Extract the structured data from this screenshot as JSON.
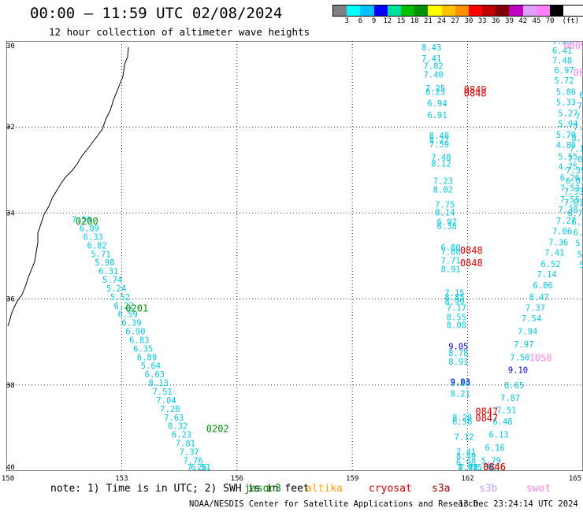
{
  "header": {
    "title": "00:00 – 11:59 UTC 02/08/2024",
    "subtitle": "12 hour collection of altimeter wave heights"
  },
  "legend": {
    "unit": "(ft)",
    "labels": [
      "3",
      "6",
      "9",
      "12",
      "15",
      "18",
      "21",
      "24",
      "27",
      "30",
      "33",
      "36",
      "39",
      "42",
      "45",
      "70"
    ],
    "colors": [
      "#808080",
      "#00ffff",
      "#00c0ff",
      "#0000ff",
      "#00e0a0",
      "#00c000",
      "#009000",
      "#ffff00",
      "#ffc000",
      "#ff9000",
      "#ff0000",
      "#c00000",
      "#800000",
      "#c000c0",
      "#e0a0ff",
      "#ff80ff",
      "#000000"
    ]
  },
  "axes": {
    "y_labels": [
      "30",
      "32",
      "34",
      "36",
      "38",
      "40"
    ],
    "y_lat_values": [
      -30,
      -32,
      -34,
      -36,
      -38,
      -40
    ],
    "x_labels": [
      "150",
      "153",
      "156",
      "159",
      "162",
      "165"
    ],
    "x_lon_values": [
      150,
      153,
      156,
      159,
      162,
      165
    ]
  },
  "tracks": [
    {
      "name": "track-jason3-west",
      "color": "#00c8e0",
      "points": [
        {
          "lon": 151.7,
          "lat": -34.15,
          "v": "7.56"
        },
        {
          "lon": 151.9,
          "lat": -34.35,
          "v": "6.89"
        },
        {
          "lon": 152.0,
          "lat": -34.55,
          "v": "6.33"
        },
        {
          "lon": 152.1,
          "lat": -34.75,
          "v": "6.82"
        },
        {
          "lon": 152.2,
          "lat": -34.95,
          "v": "5.71"
        },
        {
          "lon": 152.3,
          "lat": -35.15,
          "v": "5.98"
        },
        {
          "lon": 152.4,
          "lat": -35.35,
          "v": "6.31"
        },
        {
          "lon": 152.5,
          "lat": -35.55,
          "v": "5.74"
        },
        {
          "lon": 152.6,
          "lat": -35.75,
          "v": "5.24"
        },
        {
          "lon": 152.7,
          "lat": -35.95,
          "v": "5.52"
        },
        {
          "lon": 152.8,
          "lat": -36.15,
          "v": "6.22"
        },
        {
          "lon": 152.9,
          "lat": -36.35,
          "v": "6.59"
        },
        {
          "lon": 153.0,
          "lat": -36.55,
          "v": "6.39"
        },
        {
          "lon": 153.1,
          "lat": -36.75,
          "v": "6.90"
        },
        {
          "lon": 153.2,
          "lat": -36.95,
          "v": "6.83"
        },
        {
          "lon": 153.3,
          "lat": -37.15,
          "v": "6.35"
        },
        {
          "lon": 153.4,
          "lat": -37.35,
          "v": "6.89"
        },
        {
          "lon": 153.5,
          "lat": -37.55,
          "v": "5.64"
        },
        {
          "lon": 153.6,
          "lat": -37.75,
          "v": "6.63"
        },
        {
          "lon": 153.7,
          "lat": -37.95,
          "v": "8.13"
        },
        {
          "lon": 153.8,
          "lat": -38.15,
          "v": "7.51"
        },
        {
          "lon": 153.9,
          "lat": -38.35,
          "v": "7.04"
        },
        {
          "lon": 154.0,
          "lat": -38.55,
          "v": "7.20"
        },
        {
          "lon": 154.1,
          "lat": -38.75,
          "v": "7.63"
        },
        {
          "lon": 154.2,
          "lat": -38.95,
          "v": "8.32"
        },
        {
          "lon": 154.3,
          "lat": -39.15,
          "v": "6.23"
        },
        {
          "lon": 154.4,
          "lat": -39.35,
          "v": "7.81"
        },
        {
          "lon": 154.5,
          "lat": -39.55,
          "v": "7.37"
        },
        {
          "lon": 154.6,
          "lat": -39.75,
          "v": "7.76"
        },
        {
          "lon": 154.7,
          "lat": -39.95,
          "v": "7.26"
        },
        {
          "lon": 154.8,
          "lat": -40.15,
          "v": "6.51"
        }
      ]
    },
    {
      "name": "track-middle",
      "color": "#00c8e0",
      "points": [
        {
          "lon": 160.8,
          "lat": -30.15,
          "v": "8.43"
        },
        {
          "lon": 160.8,
          "lat": -30.4,
          "v": "7.41"
        },
        {
          "lon": 160.85,
          "lat": -30.58,
          "v": "7.82"
        },
        {
          "lon": 160.85,
          "lat": -30.78,
          "v": "7.40"
        },
        {
          "lon": 160.9,
          "lat": -31.1,
          "v": "7.25"
        },
        {
          "lon": 160.9,
          "lat": -31.18,
          "v": "8.25"
        },
        {
          "lon": 160.95,
          "lat": -31.45,
          "v": "6.94"
        },
        {
          "lon": 160.95,
          "lat": -31.72,
          "v": "6.91"
        },
        {
          "lon": 161.0,
          "lat": -32.2,
          "v": "8.48"
        },
        {
          "lon": 161.0,
          "lat": -32.3,
          "v": "8.27"
        },
        {
          "lon": 161.0,
          "lat": -32.4,
          "v": "7.59"
        },
        {
          "lon": 161.05,
          "lat": -32.7,
          "v": "7.48"
        },
        {
          "lon": 161.05,
          "lat": -32.85,
          "v": "8.12"
        },
        {
          "lon": 161.1,
          "lat": -33.25,
          "v": "7.23"
        },
        {
          "lon": 161.1,
          "lat": -33.45,
          "v": "8.02"
        },
        {
          "lon": 161.15,
          "lat": -33.8,
          "v": "7.75"
        },
        {
          "lon": 161.15,
          "lat": -33.98,
          "v": "8.14"
        },
        {
          "lon": 161.2,
          "lat": -34.2,
          "v": "6.97"
        },
        {
          "lon": 161.2,
          "lat": -34.3,
          "v": "6.38"
        },
        {
          "lon": 161.3,
          "lat": -34.8,
          "v": "6.80"
        },
        {
          "lon": 161.3,
          "lat": -34.9,
          "v": "7.00"
        },
        {
          "lon": 161.3,
          "lat": -35.1,
          "v": "7.71"
        },
        {
          "lon": 161.3,
          "lat": -35.3,
          "v": "8.91"
        },
        {
          "lon": 161.4,
          "lat": -35.85,
          "v": "7.15"
        },
        {
          "lon": 161.4,
          "lat": -35.95,
          "v": "8.85"
        },
        {
          "lon": 161.4,
          "lat": -36.05,
          "v": "8.99"
        },
        {
          "lon": 161.45,
          "lat": -36.2,
          "v": "7.17"
        },
        {
          "lon": 161.45,
          "lat": -36.42,
          "v": "8.55"
        },
        {
          "lon": 161.45,
          "lat": -36.6,
          "v": "8.08"
        },
        {
          "lon": 161.5,
          "lat": -37.25,
          "v": "8.78"
        },
        {
          "lon": 161.5,
          "lat": -37.45,
          "v": "8.91"
        },
        {
          "lon": 161.55,
          "lat": -37.95,
          "v": "8.80"
        },
        {
          "lon": 161.55,
          "lat": -38.2,
          "v": "8.21"
        },
        {
          "lon": 161.6,
          "lat": -38.75,
          "v": "8.28"
        },
        {
          "lon": 161.6,
          "lat": -38.85,
          "v": "6.56"
        },
        {
          "lon": 161.65,
          "lat": -39.2,
          "v": "7.12"
        },
        {
          "lon": 161.7,
          "lat": -39.55,
          "v": "7.41"
        },
        {
          "lon": 161.7,
          "lat": -39.65,
          "v": "8.49"
        },
        {
          "lon": 161.7,
          "lat": -39.8,
          "v": "6.98"
        },
        {
          "lon": 161.75,
          "lat": -40.0,
          "v": "7.42"
        },
        {
          "lon": 161.75,
          "lat": -40.1,
          "v": "8.01"
        }
      ]
    },
    {
      "name": "track-middle-darkblue",
      "color": "#0000e0",
      "points": [
        {
          "lon": 161.5,
          "lat": -37.1,
          "v": "9.05"
        },
        {
          "lon": 161.55,
          "lat": -37.92,
          "v": "9.03"
        }
      ]
    },
    {
      "name": "track-east",
      "color": "#00c8e0",
      "points": [
        {
          "lon": 164.2,
          "lat": -30.0,
          "v": "7.29"
        },
        {
          "lon": 164.2,
          "lat": -30.22,
          "v": "6.41"
        },
        {
          "lon": 164.2,
          "lat": -30.45,
          "v": "7.48"
        },
        {
          "lon": 164.25,
          "lat": -30.68,
          "v": "6.97"
        },
        {
          "lon": 164.25,
          "lat": -30.92,
          "v": "5.72"
        },
        {
          "lon": 164.3,
          "lat": -31.18,
          "v": "5.86"
        },
        {
          "lon": 164.3,
          "lat": -31.42,
          "v": "5.33"
        },
        {
          "lon": 164.35,
          "lat": -31.68,
          "v": "5.27"
        },
        {
          "lon": 164.35,
          "lat": -31.92,
          "v": "5.94"
        },
        {
          "lon": 164.3,
          "lat": -32.18,
          "v": "5.70"
        },
        {
          "lon": 164.3,
          "lat": -32.42,
          "v": "4.89"
        },
        {
          "lon": 164.35,
          "lat": -32.68,
          "v": "5.55"
        },
        {
          "lon": 164.35,
          "lat": -32.92,
          "v": "4.75"
        },
        {
          "lon": 164.4,
          "lat": -33.18,
          "v": "6.26"
        },
        {
          "lon": 164.4,
          "lat": -33.42,
          "v": "7.53"
        },
        {
          "lon": 164.4,
          "lat": -33.68,
          "v": "7.55"
        },
        {
          "lon": 164.35,
          "lat": -33.92,
          "v": "7.38"
        },
        {
          "lon": 164.3,
          "lat": -34.18,
          "v": "7.27"
        },
        {
          "lon": 164.2,
          "lat": -34.42,
          "v": "7.06"
        },
        {
          "lon": 164.1,
          "lat": -34.68,
          "v": "7.36"
        },
        {
          "lon": 164.0,
          "lat": -34.92,
          "v": "7.41"
        },
        {
          "lon": 163.9,
          "lat": -35.18,
          "v": "6.52"
        },
        {
          "lon": 163.8,
          "lat": -35.42,
          "v": "7.14"
        },
        {
          "lon": 163.7,
          "lat": -35.68,
          "v": "6.06"
        },
        {
          "lon": 163.6,
          "lat": -35.95,
          "v": "8.47"
        },
        {
          "lon": 163.5,
          "lat": -36.2,
          "v": "7.37"
        },
        {
          "lon": 163.4,
          "lat": -36.45,
          "v": "7.54"
        },
        {
          "lon": 163.3,
          "lat": -36.75,
          "v": "7.94"
        },
        {
          "lon": 163.2,
          "lat": -37.05,
          "v": "7.97"
        },
        {
          "lon": 163.1,
          "lat": -37.35,
          "v": "7.50"
        },
        {
          "lon": 162.95,
          "lat": -38.0,
          "v": "8.65"
        },
        {
          "lon": 162.85,
          "lat": -38.3,
          "v": "7.87"
        },
        {
          "lon": 162.75,
          "lat": -38.58,
          "v": "7.51"
        },
        {
          "lon": 162.65,
          "lat": -38.85,
          "v": "6.48"
        },
        {
          "lon": 162.55,
          "lat": -39.15,
          "v": "6.13"
        },
        {
          "lon": 162.45,
          "lat": -39.45,
          "v": "6.16"
        },
        {
          "lon": 162.35,
          "lat": -39.75,
          "v": "5.79"
        },
        {
          "lon": 162.25,
          "lat": -40.05,
          "v": "5.92"
        },
        {
          "lon": 162.15,
          "lat": -40.32,
          "v": "6.36"
        }
      ]
    },
    {
      "name": "track-east-darkblue",
      "color": "#0000e0",
      "points": [
        {
          "lon": 163.05,
          "lat": -37.65,
          "v": "9.10"
        }
      ]
    },
    {
      "name": "track-far-east",
      "color": "#00c8e0",
      "points": [
        {
          "lon": 164.9,
          "lat": -31.25,
          "v": "6."
        },
        {
          "lon": 164.85,
          "lat": -31.5,
          "v": "7."
        },
        {
          "lon": 164.8,
          "lat": -31.75,
          "v": "7."
        },
        {
          "lon": 164.75,
          "lat": -32.0,
          "v": "7."
        },
        {
          "lon": 164.7,
          "lat": -32.25,
          "v": "8.7"
        },
        {
          "lon": 164.65,
          "lat": -32.5,
          "v": "7.1"
        },
        {
          "lon": 164.6,
          "lat": -32.75,
          "v": "7.02"
        },
        {
          "lon": 164.55,
          "lat": -33.0,
          "v": "7.39"
        },
        {
          "lon": 164.55,
          "lat": -33.25,
          "v": "6.07"
        },
        {
          "lon": 164.5,
          "lat": -33.5,
          "v": "7.33"
        },
        {
          "lon": 164.5,
          "lat": -33.75,
          "v": "7.81"
        },
        {
          "lon": 164.6,
          "lat": -34.0,
          "v": "6.74"
        },
        {
          "lon": 164.7,
          "lat": -34.2,
          "v": "6.33"
        },
        {
          "lon": 164.75,
          "lat": -34.45,
          "v": "6.53"
        },
        {
          "lon": 164.8,
          "lat": -34.7,
          "v": "5.07"
        },
        {
          "lon": 164.85,
          "lat": -34.95,
          "v": "5.1"
        },
        {
          "lon": 164.9,
          "lat": -35.2,
          "v": "5."
        }
      ]
    }
  ],
  "time_labels": [
    {
      "lon": 151.8,
      "lat": -34.18,
      "text": "0200",
      "color": "#009000"
    },
    {
      "lon": 153.1,
      "lat": -36.2,
      "text": "0201",
      "color": "#009000"
    },
    {
      "lon": 155.2,
      "lat": -39.0,
      "text": "0202",
      "color": "#009000"
    },
    {
      "lon": 161.9,
      "lat": -31.12,
      "text": "0849",
      "color": "#e00000"
    },
    {
      "lon": 161.9,
      "lat": -31.2,
      "text": "0848",
      "color": "#e00000"
    },
    {
      "lon": 161.8,
      "lat": -34.85,
      "text": "0848",
      "color": "#e00000"
    },
    {
      "lon": 161.8,
      "lat": -35.15,
      "text": "0848",
      "color": "#e00000"
    },
    {
      "lon": 162.2,
      "lat": -38.6,
      "text": "0847",
      "color": "#e00000"
    },
    {
      "lon": 162.2,
      "lat": -38.75,
      "text": "0847",
      "color": "#e00000"
    },
    {
      "lon": 162.4,
      "lat": -40.0,
      "text": "0846",
      "color": "#e00000"
    },
    {
      "lon": 162.4,
      "lat": -40.12,
      "text": "0846",
      "color": "#e00000"
    },
    {
      "lon": 164.5,
      "lat": -30.0,
      "text": "0009",
      "color": "#ff80e0"
    },
    {
      "lon": 164.75,
      "lat": -30.72,
      "text": "001",
      "color": "#ff80e0"
    },
    {
      "lon": 163.6,
      "lat": -37.35,
      "text": "1058",
      "color": "#ff80e0"
    }
  ],
  "footer": {
    "note": "note:  1) Time is in UTC; 2) SWH is in feet",
    "satellites": [
      {
        "name": "jason3",
        "color": "#009000"
      },
      {
        "name": "altika",
        "color": "#ffa000"
      },
      {
        "name": "cryosat",
        "color": "#e00000"
      },
      {
        "name": "s3a",
        "color": "#a00000"
      },
      {
        "name": "s3b",
        "color": "#c0a0ff"
      },
      {
        "name": "swot",
        "color": "#ff80e0"
      }
    ],
    "credit": "NOAA/NESDIS Center for Satellite Applications and Research",
    "timestamp": "13 Dec 23:24:14 UTC 2024"
  }
}
